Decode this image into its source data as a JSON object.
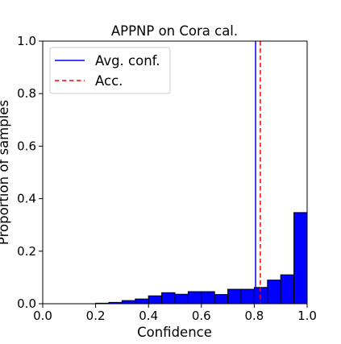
{
  "chart_data": {
    "type": "bar",
    "title": "APPNP on Cora cal.",
    "xlabel": "Confidence",
    "ylabel": "Proportion of samples",
    "xlim": [
      0.0,
      1.0
    ],
    "ylim": [
      0.0,
      1.0
    ],
    "xticks": [
      "0.0",
      "0.2",
      "0.4",
      "0.6",
      "0.8",
      "1.0"
    ],
    "yticks": [
      "0.0",
      "0.2",
      "0.4",
      "0.6",
      "0.8",
      "1.0"
    ],
    "grid": false,
    "legend_position": "top-left",
    "bin_width": 0.05,
    "bins": [
      {
        "x": 0.2,
        "value": 0.002
      },
      {
        "x": 0.25,
        "value": 0.005
      },
      {
        "x": 0.3,
        "value": 0.012
      },
      {
        "x": 0.35,
        "value": 0.018
      },
      {
        "x": 0.4,
        "value": 0.03
      },
      {
        "x": 0.45,
        "value": 0.042
      },
      {
        "x": 0.5,
        "value": 0.036
      },
      {
        "x": 0.55,
        "value": 0.046
      },
      {
        "x": 0.6,
        "value": 0.046
      },
      {
        "x": 0.65,
        "value": 0.035
      },
      {
        "x": 0.7,
        "value": 0.055
      },
      {
        "x": 0.75,
        "value": 0.055
      },
      {
        "x": 0.8,
        "value": 0.062
      },
      {
        "x": 0.85,
        "value": 0.09
      },
      {
        "x": 0.9,
        "value": 0.11
      },
      {
        "x": 0.95,
        "value": 0.347
      }
    ],
    "avg_conf": 0.805,
    "accuracy": 0.823,
    "legend": [
      {
        "label": "Avg. conf.",
        "style": "solid",
        "color": "#0000ff"
      },
      {
        "label": "Acc.",
        "style": "dashed",
        "color": "#ff0000"
      }
    ],
    "bar_color": "#0000ff",
    "bar_edge_color": "#000000"
  }
}
